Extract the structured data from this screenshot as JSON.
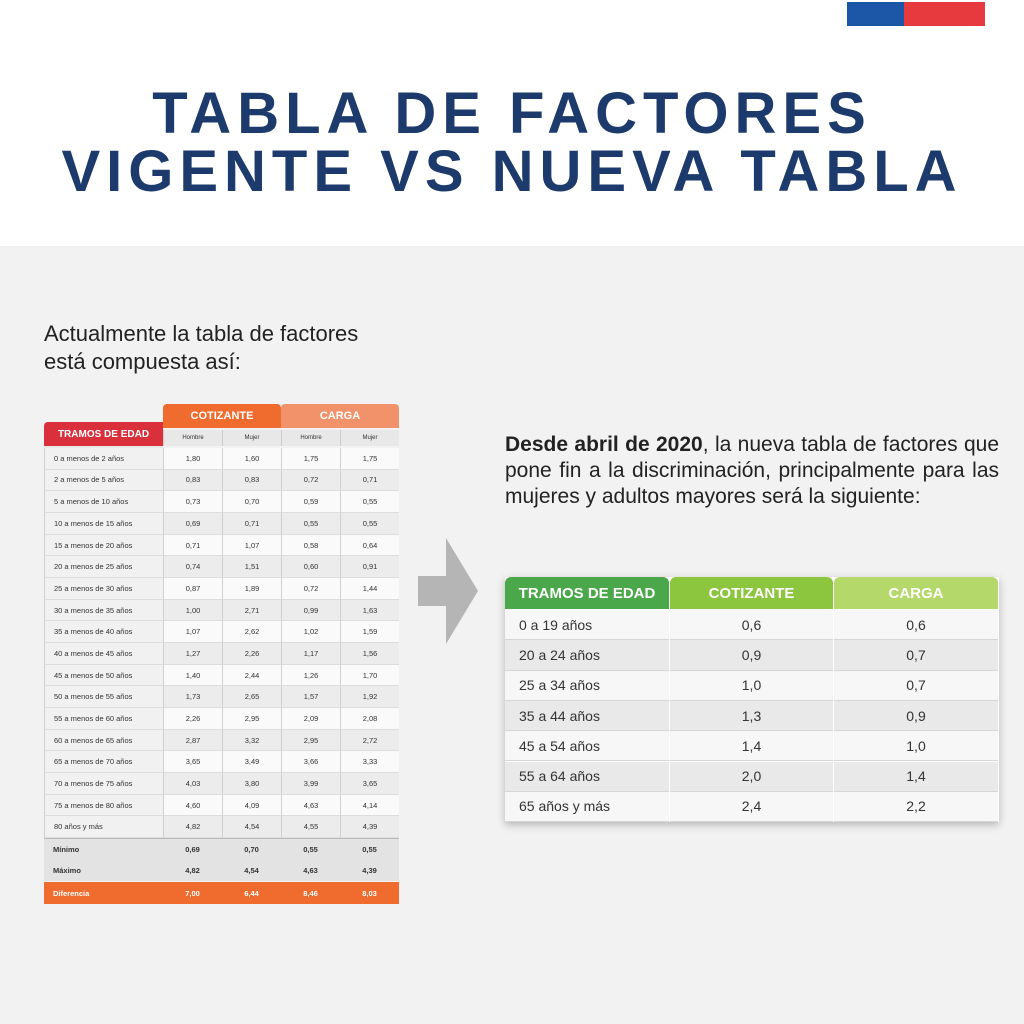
{
  "header": {
    "title": [
      "TABLA DE FACTORES",
      "VIGENTE VS NUEVA TABLA"
    ]
  },
  "intro": [
    "Actualmente la tabla de factores",
    "está compuesta así:"
  ],
  "old_table": {
    "group_headers": [
      "TRAMOS DE EDAD",
      "COTIZANTE",
      "CARGA"
    ],
    "sub_headers": [
      "Hombre",
      "Mujer",
      "Hombre",
      "Mujer"
    ],
    "rows": [
      [
        "0 a menos de 2 años",
        "1,80",
        "1,60",
        "1,75",
        "1,75"
      ],
      [
        "2 a menos de 5 años",
        "0,83",
        "0,83",
        "0,72",
        "0,71"
      ],
      [
        "5 a menos de 10 años",
        "0,73",
        "0,70",
        "0,59",
        "0,55"
      ],
      [
        "10 a menos de 15 años",
        "0,69",
        "0,71",
        "0,55",
        "0,55"
      ],
      [
        "15 a menos de 20 años",
        "0,71",
        "1,07",
        "0,58",
        "0,64"
      ],
      [
        "20 a menos de 25 años",
        "0,74",
        "1,51",
        "0,60",
        "0,91"
      ],
      [
        "25 a menos de 30 años",
        "0,87",
        "1,89",
        "0,72",
        "1,44"
      ],
      [
        "30 a menos de 35 años",
        "1,00",
        "2,71",
        "0,99",
        "1,63"
      ],
      [
        "35 a menos de 40 años",
        "1,07",
        "2,62",
        "1,02",
        "1,59"
      ],
      [
        "40 a menos de 45 años",
        "1,27",
        "2,26",
        "1,17",
        "1,56"
      ],
      [
        "45 a menos de 50 años",
        "1,40",
        "2,44",
        "1,26",
        "1,70"
      ],
      [
        "50 a menos de 55 años",
        "1,73",
        "2,65",
        "1,57",
        "1,92"
      ],
      [
        "55 a menos de 60 años",
        "2,26",
        "2,95",
        "2,09",
        "2,08"
      ],
      [
        "60 a menos de 65 años",
        "2,87",
        "3,32",
        "2,95",
        "2,72"
      ],
      [
        "65 a menos de 70 años",
        "3,65",
        "3,49",
        "3,66",
        "3,33"
      ],
      [
        "70 a menos de 75 años",
        "4,03",
        "3,80",
        "3,99",
        "3,65"
      ],
      [
        "75 a menos de 80 años",
        "4,60",
        "4,09",
        "4,63",
        "4,14"
      ],
      [
        "80 años y más",
        "4,82",
        "4,54",
        "4,55",
        "4,39"
      ]
    ],
    "summary": [
      [
        "Mínimo",
        "0,69",
        "0,70",
        "0,55",
        "0,55"
      ],
      [
        "Máximo",
        "4,82",
        "4,54",
        "4,63",
        "4,39"
      ],
      [
        "Diferencia",
        "7,00",
        "6,44",
        "8,46",
        "8,03"
      ]
    ]
  },
  "description": {
    "bold": "Desde abril de 2020",
    "text": ", la nueva tabla de factores que pone fin a la discriminación, principalmente para las mujeres y adultos mayores será la siguiente:"
  },
  "new_table": {
    "headers": [
      "TRAMOS DE EDAD",
      "COTIZANTE",
      "CARGA"
    ],
    "rows": [
      [
        "0 a 19 años",
        "0,6",
        "0,6"
      ],
      [
        "20 a 24 años",
        "0,9",
        "0,7"
      ],
      [
        "25 a 34 años",
        "1,0",
        "0,7"
      ],
      [
        "35 a 44 años",
        "1,3",
        "0,9"
      ],
      [
        "45 a 54 años",
        "1,4",
        "1,0"
      ],
      [
        "55 a 64 años",
        "2,0",
        "1,4"
      ],
      [
        "65 años y más",
        "2,4",
        "2,2"
      ]
    ]
  }
}
